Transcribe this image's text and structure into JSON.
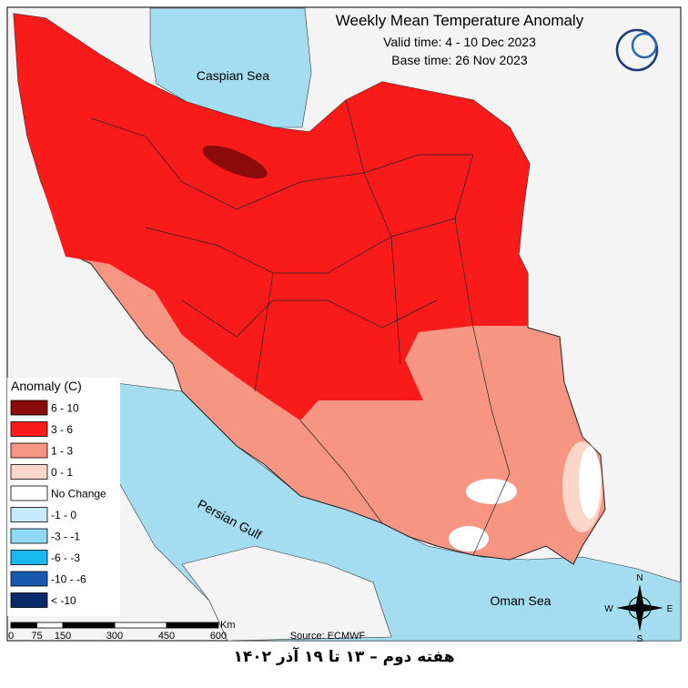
{
  "title": "Weekly Mean Temperature Anomaly",
  "valid_time": "Valid time: 4 - 10 Dec 2023",
  "base_time": "Base time: 26 Nov 2023",
  "seas": {
    "caspian": "Caspian Sea",
    "gulf": "Persian Gulf",
    "oman": "Oman Sea"
  },
  "legend": {
    "title": "Anomaly (C)",
    "items": [
      {
        "label": "6 - 10",
        "color": "#8b0a0a"
      },
      {
        "label": "3 - 6",
        "color": "#f91a1a"
      },
      {
        "label": "1 - 3",
        "color": "#f69682"
      },
      {
        "label": "0 - 1",
        "color": "#fbd5c8"
      },
      {
        "label": "No Change",
        "color": "#ffffff"
      },
      {
        "label": "-1 - 0",
        "color": "#c6e9fb"
      },
      {
        "label": "-3 - -1",
        "color": "#8fd8f6"
      },
      {
        "label": "-6 - -3",
        "color": "#1ab8f0"
      },
      {
        "label": "-10 - -6",
        "color": "#1659b0"
      },
      {
        "label": "< -10",
        "color": "#0a2a6e"
      }
    ]
  },
  "scale_bar": {
    "ticks": [
      0,
      75,
      150,
      300,
      450,
      600
    ],
    "unit": "Km"
  },
  "source": "Source: ECMWF",
  "compass": {
    "n": "N",
    "s": "S",
    "e": "E",
    "w": "W"
  },
  "caption": "هفته دوم – ۱۳ تا ۱۹ آذر ۱۴۰۲"
}
